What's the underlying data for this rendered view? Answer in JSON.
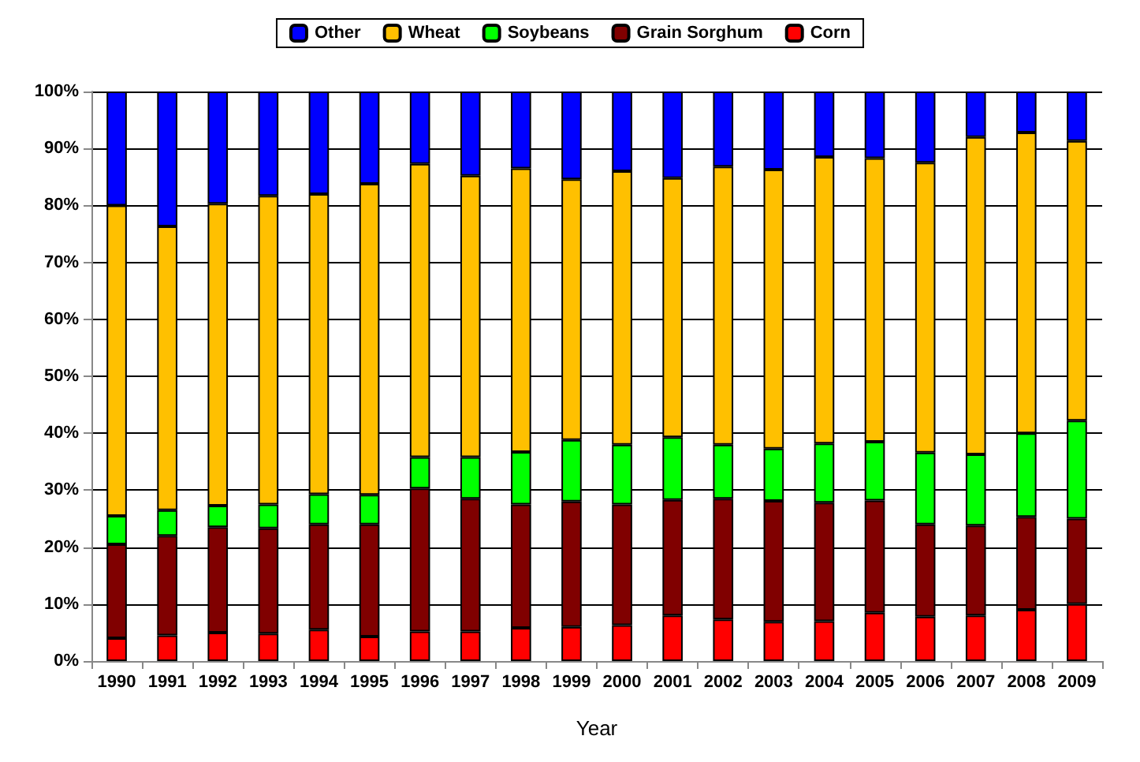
{
  "chart_data": {
    "type": "bar",
    "stacked": true,
    "xlabel": "Year",
    "categories": [
      "1990",
      "1991",
      "1992",
      "1993",
      "1994",
      "1995",
      "1996",
      "1997",
      "1998",
      "1999",
      "2000",
      "2001",
      "2002",
      "2003",
      "2004",
      "2005",
      "2006",
      "2007",
      "2008",
      "2009"
    ],
    "series": [
      {
        "name": "Corn",
        "color": "#ff0000",
        "values": [
          4,
          4.5,
          5,
          4.8,
          5.5,
          4.3,
          5.2,
          5.2,
          5.8,
          6,
          6.3,
          8,
          7.3,
          6.9,
          7,
          8.5,
          7.8,
          8,
          9,
          10
        ]
      },
      {
        "name": "Grain Sorghum",
        "color": "#800000",
        "values": [
          16.5,
          17.5,
          18.5,
          18.5,
          18.5,
          19.7,
          25.1,
          23.3,
          21.7,
          22,
          21.2,
          20.3,
          21.2,
          21.2,
          20.8,
          19.7,
          16.2,
          15.8,
          16.3,
          15
        ]
      },
      {
        "name": "Soybeans",
        "color": "#00ff00",
        "values": [
          5,
          4.5,
          3.8,
          4.2,
          5.3,
          5.2,
          5.5,
          7.3,
          9.2,
          10.8,
          10.5,
          11,
          9.5,
          9.2,
          10.4,
          10.3,
          12.6,
          12.5,
          14.7,
          17.2
        ]
      },
      {
        "name": "Wheat",
        "color": "#ffc000",
        "values": [
          54.5,
          49.8,
          53,
          54.2,
          52.7,
          54.6,
          51.5,
          49.4,
          49.8,
          45.8,
          48,
          45.5,
          48.8,
          49,
          50.3,
          49.8,
          50.9,
          55.7,
          52.8,
          49.1
        ]
      },
      {
        "name": "Other",
        "color": "#0000ff",
        "values": [
          20,
          23.7,
          19.7,
          18.3,
          18,
          16.2,
          12.7,
          14.8,
          13.5,
          15.4,
          14,
          15.2,
          13.2,
          13.7,
          11.5,
          11.7,
          12.5,
          8,
          7.2,
          8.7
        ]
      }
    ],
    "ylim": [
      0,
      100
    ],
    "yticks": [
      {
        "value": 0,
        "label": "0%"
      },
      {
        "value": 10,
        "label": "10%"
      },
      {
        "value": 20,
        "label": "20%"
      },
      {
        "value": 30,
        "label": "30%"
      },
      {
        "value": 40,
        "label": "40%"
      },
      {
        "value": 50,
        "label": "50%"
      },
      {
        "value": 60,
        "label": "60%"
      },
      {
        "value": 70,
        "label": "70%"
      },
      {
        "value": 80,
        "label": "80%"
      },
      {
        "value": 90,
        "label": "90%"
      },
      {
        "value": 100,
        "label": "100%"
      }
    ],
    "grid": "y",
    "legend": "top"
  }
}
